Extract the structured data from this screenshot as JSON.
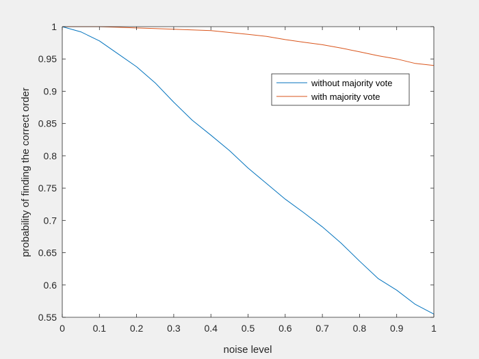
{
  "chart_data": {
    "type": "line",
    "title": "",
    "xlabel": "noise level",
    "ylabel": "probability of finding the correct order",
    "xlim": [
      0,
      1
    ],
    "ylim": [
      0.55,
      1
    ],
    "xticks": [
      0,
      0.1,
      0.2,
      0.3,
      0.4,
      0.5,
      0.6,
      0.7,
      0.8,
      0.9,
      1
    ],
    "xtick_labels": [
      "0",
      "0.1",
      "0.2",
      "0.3",
      "0.4",
      "0.5",
      "0.6",
      "0.7",
      "0.8",
      "0.9",
      "1"
    ],
    "yticks": [
      0.55,
      0.6,
      0.65,
      0.7,
      0.75,
      0.8,
      0.85,
      0.9,
      0.95,
      1
    ],
    "ytick_labels": [
      "0.55",
      "0.6",
      "0.65",
      "0.7",
      "0.75",
      "0.8",
      "0.85",
      "0.9",
      "0.95",
      "1"
    ],
    "grid": false,
    "legend_position": "upper-right-inside",
    "x": [
      0,
      0.05,
      0.1,
      0.15,
      0.2,
      0.25,
      0.3,
      0.35,
      0.4,
      0.45,
      0.5,
      0.55,
      0.6,
      0.65,
      0.7,
      0.75,
      0.8,
      0.85,
      0.9,
      0.95,
      1.0
    ],
    "series": [
      {
        "name": "without majority vote",
        "color": "#0072BD",
        "values": [
          1.0,
          0.992,
          0.978,
          0.958,
          0.938,
          0.913,
          0.883,
          0.855,
          0.832,
          0.808,
          0.781,
          0.757,
          0.733,
          0.712,
          0.69,
          0.665,
          0.637,
          0.61,
          0.592,
          0.57,
          0.555
        ]
      },
      {
        "name": "with majority vote",
        "color": "#D95319",
        "values": [
          1.0,
          1.0,
          1.0,
          0.999,
          0.998,
          0.997,
          0.996,
          0.995,
          0.994,
          0.991,
          0.988,
          0.985,
          0.98,
          0.976,
          0.972,
          0.967,
          0.961,
          0.955,
          0.95,
          0.943,
          0.94
        ]
      }
    ]
  }
}
